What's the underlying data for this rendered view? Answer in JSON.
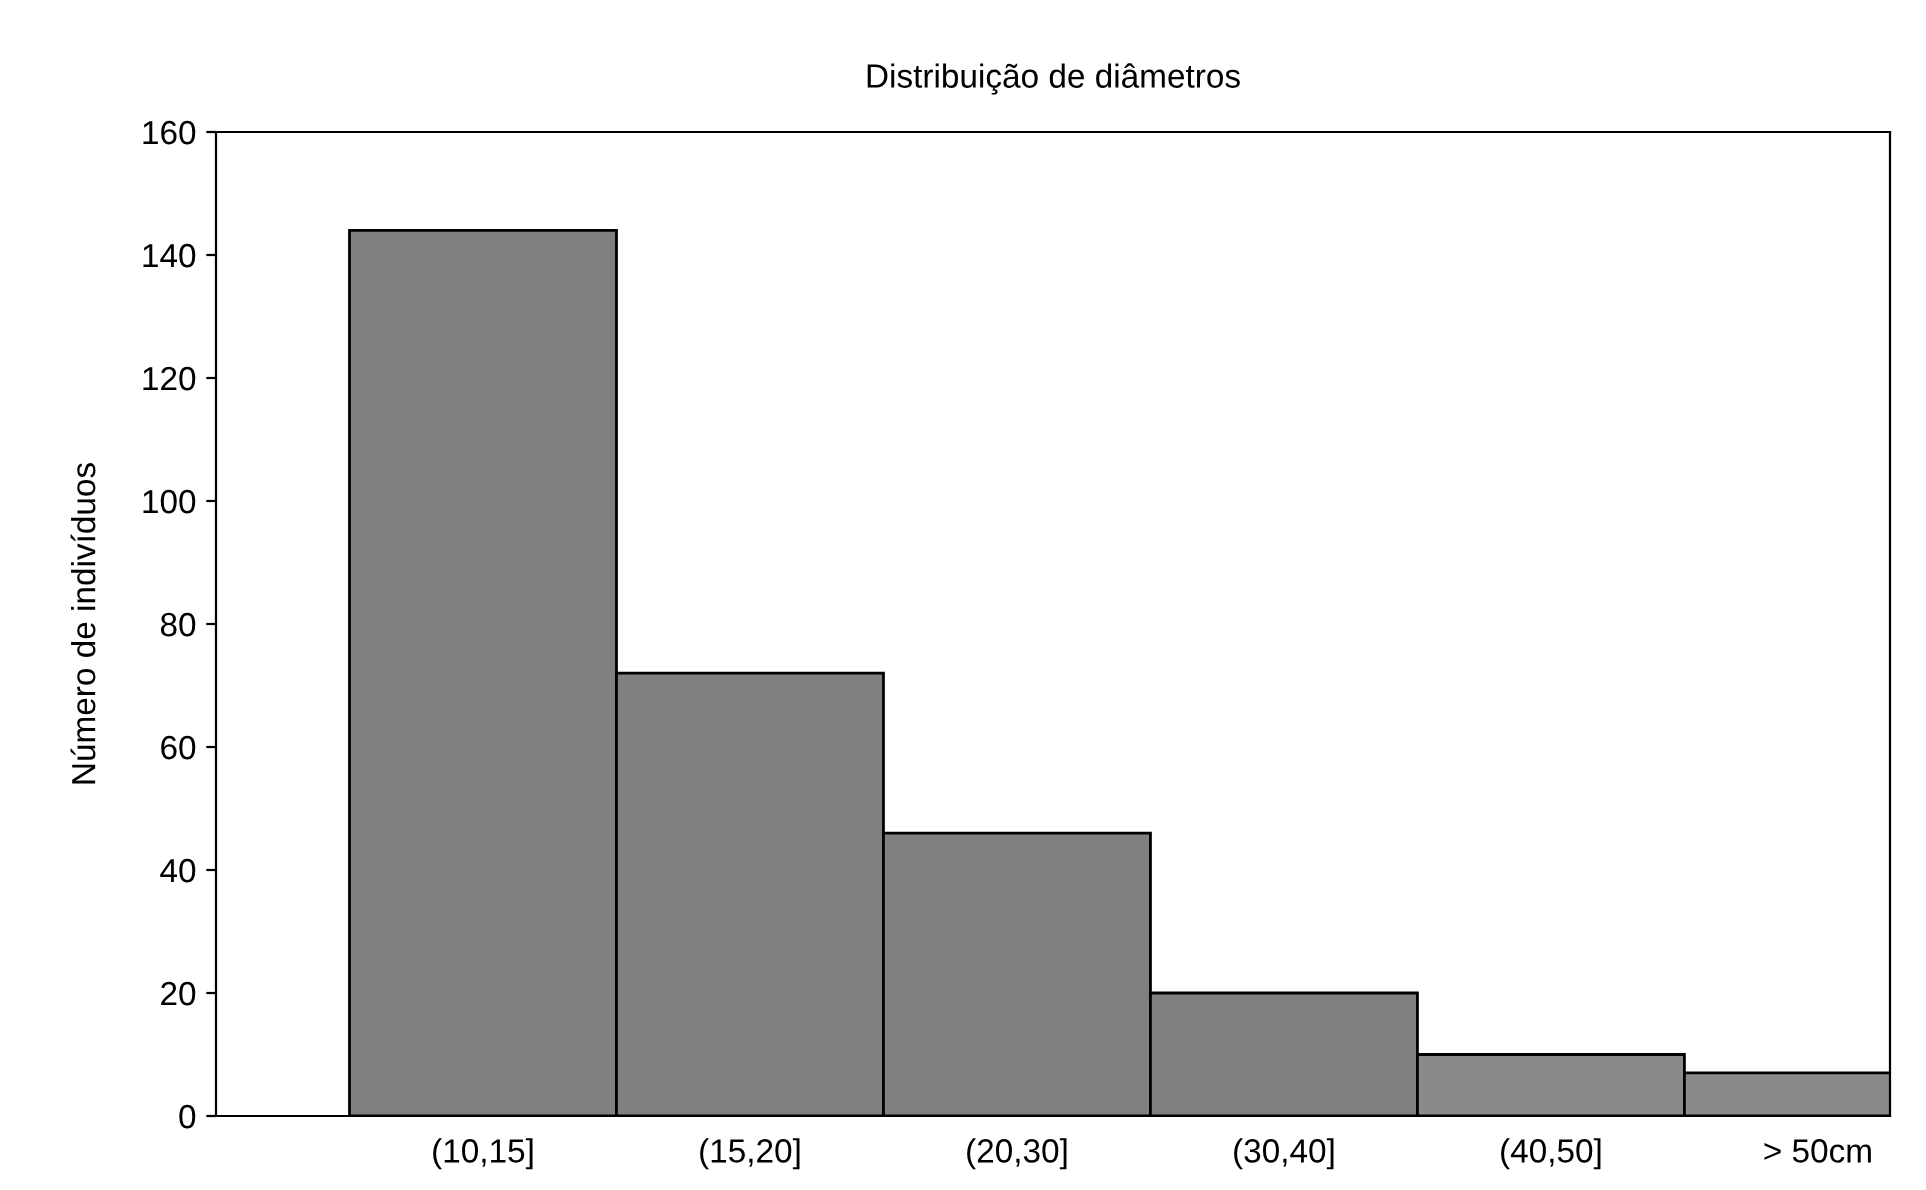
{
  "chart_data": {
    "type": "bar",
    "title": "Distribuição de diâmetros",
    "ylabel": "Número de indivíduos",
    "categories": [
      "(10,15]",
      "(15,20]",
      "(20,30]",
      "(30,40]",
      "(40,50]",
      "> 50cm"
    ],
    "values": [
      144,
      72,
      46,
      20,
      10,
      7
    ],
    "colors": [
      "#808080",
      "#808080",
      "#808080",
      "#808080",
      "#8a8a8a",
      "#8a8a8a"
    ],
    "ylim": [
      0,
      160
    ],
    "yticks": [
      0,
      20,
      40,
      60,
      80,
      100,
      120,
      140,
      160
    ],
    "grid": false,
    "legend": false
  }
}
